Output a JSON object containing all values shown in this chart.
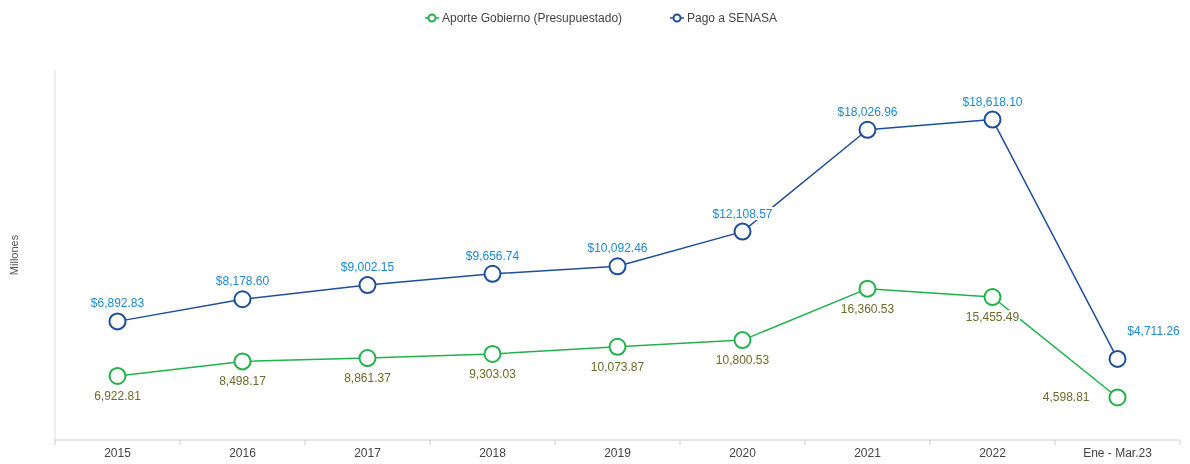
{
  "chart_data": {
    "type": "line",
    "ylabel": "Millones",
    "categories": [
      "2015",
      "2016",
      "2017",
      "2018",
      "2019",
      "2020",
      "2021",
      "2022",
      "Ene - Mar.23"
    ],
    "series": [
      {
        "name": "Aporte Gobierno (Presupuestado)",
        "color": "#22b14c",
        "axis": "y2",
        "values": [
          6922.81,
          8498.17,
          8861.37,
          9303.03,
          10073.87,
          10800.53,
          16360.53,
          15455.49,
          4598.81
        ],
        "value_labels": [
          "6,922.81",
          "8,498.17",
          "8,861.37",
          "9,303.03",
          "10,073.87",
          "10,800.53",
          "16,360.53",
          "15,455.49",
          "4,598.81"
        ]
      },
      {
        "name": "Pago a SENASA",
        "color": "#1f4e99",
        "values": [
          6892.83,
          8178.6,
          9002.15,
          9656.74,
          10092.46,
          12108.57,
          18026.96,
          18618.1,
          4711.26
        ],
        "value_labels": [
          "$6,892.83",
          "$8,178.60",
          "$9,002.15",
          "$9,656.74",
          "$10,092.46",
          "$12,108.57",
          "$18,026.96",
          "$18,618.10",
          "$4,711.26"
        ]
      }
    ],
    "ylim": [
      0,
      21500
    ],
    "y2lim": [
      0,
      40000
    ],
    "tick_labels": "x",
    "legend": "top",
    "marker": "circle",
    "line_style": "solid"
  }
}
